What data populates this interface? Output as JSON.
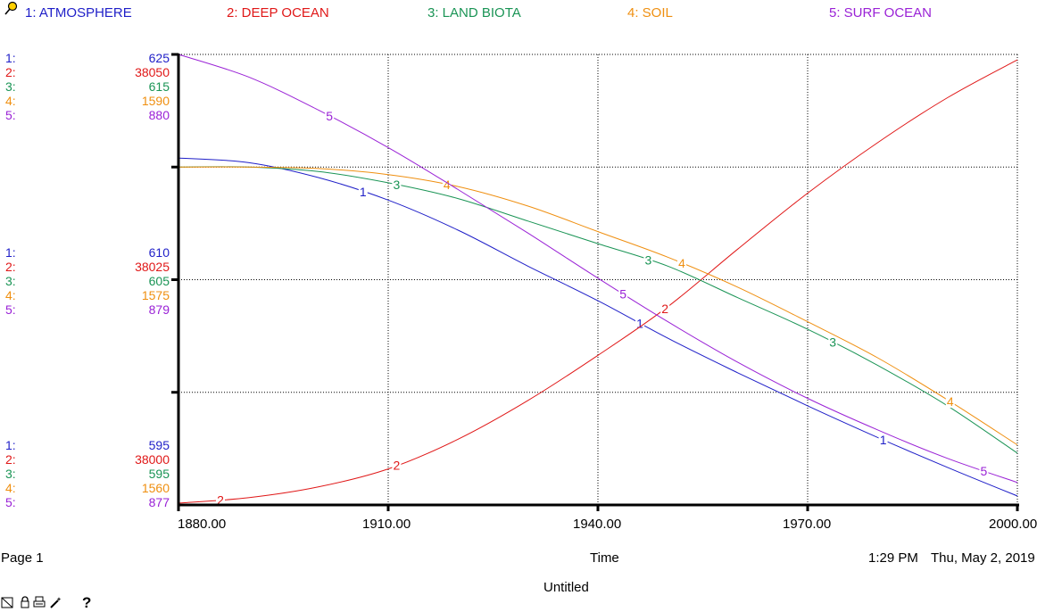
{
  "legend": [
    {
      "label": "1: ATMOSPHERE",
      "color": "#1f1fc8"
    },
    {
      "label": "2: DEEP OCEAN",
      "color": "#e01818"
    },
    {
      "label": "3: LAND BIOTA",
      "color": "#1a9455"
    },
    {
      "label": "4: SOIL",
      "color": "#ef8f10"
    },
    {
      "label": "5: SURF OCEAN",
      "color": "#9a22d6"
    }
  ],
  "scales": {
    "top": [
      {
        "n": "1:",
        "v": "625"
      },
      {
        "n": "2:",
        "v": "38050"
      },
      {
        "n": "3:",
        "v": "615"
      },
      {
        "n": "4:",
        "v": "1590"
      },
      {
        "n": "5:",
        "v": "880"
      }
    ],
    "middle": [
      {
        "n": "1:",
        "v": "610"
      },
      {
        "n": "2:",
        "v": "38025"
      },
      {
        "n": "3:",
        "v": "605"
      },
      {
        "n": "4:",
        "v": "1575"
      },
      {
        "n": "5:",
        "v": "879"
      }
    ],
    "bottom": [
      {
        "n": "1:",
        "v": "595"
      },
      {
        "n": "2:",
        "v": "38000"
      },
      {
        "n": "3:",
        "v": "595"
      },
      {
        "n": "4:",
        "v": "1560"
      },
      {
        "n": "5:",
        "v": "877"
      }
    ]
  },
  "footer": {
    "page": "Page 1",
    "xlabel": "Time",
    "time": "1:29 PM",
    "date": "Thu, May 2, 2019",
    "title": "Untitled",
    "help": "?"
  },
  "chart_data": {
    "type": "line",
    "xlabel": "Time",
    "x_ticks": [
      "1880.00",
      "1910.00",
      "1940.00",
      "1970.00",
      "2000.00"
    ],
    "xlim": [
      1880,
      2000
    ],
    "grid": true,
    "legend_placement": "top",
    "series": [
      {
        "name": "1: ATMOSPHERE",
        "marker": "1",
        "color": "#1f1fc8",
        "ylim": [
          595,
          625
        ],
        "x": [
          1880,
          1890,
          1900,
          1910,
          1920,
          1930,
          1940,
          1950,
          1960,
          1970,
          1980,
          1990,
          2000
        ],
        "y": [
          618.1,
          617.8,
          616.8,
          615.3,
          613.3,
          610.9,
          608.6,
          606.1,
          603.8,
          601.6,
          599.5,
          597.5,
          595.6
        ]
      },
      {
        "name": "2: DEEP OCEAN",
        "marker": "2",
        "color": "#e01818",
        "ylim": [
          38000,
          38050
        ],
        "x": [
          1880,
          1890,
          1900,
          1910,
          1920,
          1930,
          1940,
          1950,
          1960,
          1970,
          1980,
          1990,
          2000
        ],
        "y": [
          38000.2,
          38000.8,
          38002.0,
          38004.0,
          38007.3,
          38011.6,
          38016.6,
          38022.0,
          38028.4,
          38034.6,
          38040.2,
          38045.2,
          38049.4
        ]
      },
      {
        "name": "3: LAND BIOTA",
        "marker": "3",
        "color": "#1a9455",
        "ylim": [
          595,
          615
        ],
        "x": [
          1880,
          1890,
          1900,
          1910,
          1920,
          1930,
          1940,
          1950,
          1960,
          1970,
          1980,
          1990,
          2000
        ],
        "y": [
          610.0,
          610.0,
          609.8,
          609.3,
          608.6,
          607.6,
          606.6,
          605.6,
          604.2,
          602.8,
          601.2,
          599.4,
          597.3
        ]
      },
      {
        "name": "4: SOIL",
        "marker": "4",
        "color": "#ef8f10",
        "ylim": [
          1560,
          1590
        ],
        "x": [
          1880,
          1890,
          1900,
          1910,
          1920,
          1930,
          1940,
          1950,
          1960,
          1970,
          1980,
          1990,
          2000
        ],
        "y": [
          1582.5,
          1582.5,
          1582.4,
          1582.0,
          1581.2,
          1579.9,
          1578.2,
          1576.5,
          1574.5,
          1572.2,
          1569.8,
          1567.0,
          1564.0
        ]
      },
      {
        "name": "5: SURF OCEAN",
        "marker": "5",
        "color": "#9a22d6",
        "ylim": [
          877,
          880
        ],
        "x": [
          1880,
          1890,
          1900,
          1910,
          1920,
          1930,
          1940,
          1950,
          1960,
          1970,
          1980,
          1990,
          2000
        ],
        "y": [
          880.0,
          879.85,
          879.63,
          879.38,
          879.1,
          878.81,
          878.51,
          878.22,
          877.95,
          877.71,
          877.5,
          877.31,
          877.15
        ]
      }
    ]
  }
}
